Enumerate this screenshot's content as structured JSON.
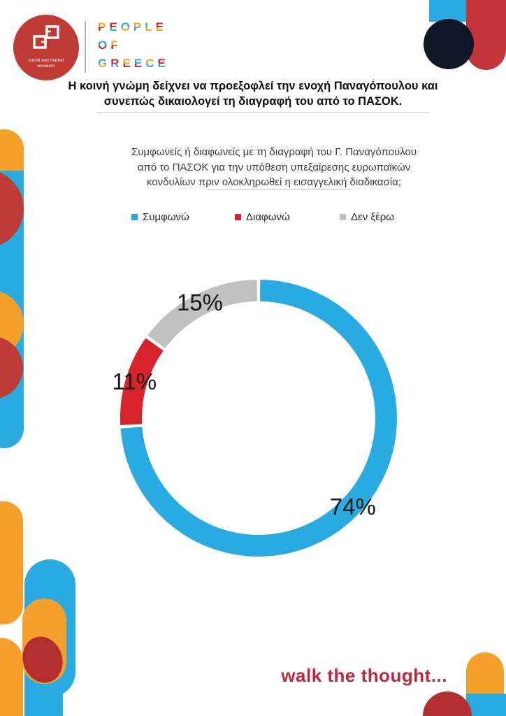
{
  "brand": {
    "logo_tagline_line1": "social and market",
    "logo_tagline_line2": "research",
    "wordmark": [
      [
        {
          "ch": "P",
          "top": "#F6A323",
          "bottom": "#D7232B"
        },
        {
          "ch": "E",
          "top": "#D7232B",
          "bottom": "#29ABE2"
        },
        {
          "ch": "O",
          "top": "#29ABE2",
          "bottom": "#F6A323"
        },
        {
          "ch": "P",
          "top": "#F6A323",
          "bottom": "#29ABE2"
        },
        {
          "ch": "L",
          "top": "#29ABE2",
          "bottom": "#F6A323"
        },
        {
          "ch": "E",
          "top": "#D7232B",
          "bottom": "#F6A323"
        }
      ],
      [
        {
          "ch": "O",
          "top": "#29ABE2",
          "bottom": "#D7232B"
        },
        {
          "ch": "F",
          "top": "#F6A323",
          "bottom": "#D7232B"
        }
      ],
      [
        {
          "ch": "G",
          "top": "#29ABE2",
          "bottom": "#F6A323"
        },
        {
          "ch": "R",
          "top": "#D7232B",
          "bottom": "#29ABE2"
        },
        {
          "ch": "E",
          "top": "#F6A323",
          "bottom": "#D7232B"
        },
        {
          "ch": "E",
          "top": "#29ABE2",
          "bottom": "#D7232B"
        },
        {
          "ch": "C",
          "top": "#F6A323",
          "bottom": "#29ABE2"
        },
        {
          "ch": "E",
          "top": "#D7232B",
          "bottom": "#29ABE2"
        }
      ]
    ]
  },
  "title": {
    "line1": "Η κοινή γνώμη δείχνει να προεξοφλεί την ενοχή Παναγόπουλου και",
    "line2": "συνεπώς δικαιολογεί τη διαγραφή του από το ΠΑΣΟΚ."
  },
  "question": {
    "line1": "Συμφωνείς ή διαφωνείς με τη διαγραφή του Γ. Παναγόπουλου",
    "line2": "από το ΠΑΣΟΚ για την υπόθεση υπεξαίρεσης ευρωπαϊκών",
    "line3": "κονδυλίων πριν ολοκληρωθεί η εισαγγελική διαδικασία;"
  },
  "legend": [
    {
      "label": "Συμφωνώ",
      "color": "#29ABE2"
    },
    {
      "label": "Διαφωνώ",
      "color": "#D7232B"
    },
    {
      "label": "Δεν ξέρω",
      "color": "#C1C1C1"
    }
  ],
  "chart_data": {
    "type": "pie",
    "subtype": "donut",
    "categories": [
      "Συμφωνώ",
      "Διαφωνώ",
      "Δεν ξέρω"
    ],
    "values": [
      74,
      11,
      15
    ],
    "unit": "%",
    "labels": [
      "74%",
      "11%",
      "15%"
    ],
    "colors": [
      "#29ABE2",
      "#D7232B",
      "#C1C1C1"
    ],
    "start_angle_deg": 0,
    "direction": "clockwise",
    "legend_position": "top",
    "title": "Συμφωνείς ή διαφωνείς με τη διαγραφή του Γ. Παναγόπουλου από το ΠΑΣΟΚ για την υπόθεση υπεξαίρεσης ευρωπαϊκών κονδυλίων πριν ολοκληρωθεί η εισαγγελική διαδικασία;"
  },
  "footer": {
    "tagline": "walk the thought..."
  },
  "colors": {
    "blue": "#29ABE2",
    "chart_red": "#D7232B",
    "gray": "#C1C1C1",
    "orange": "#F6A02C",
    "brick_red": "#BE3B36",
    "dark_red": "#B32E2E",
    "navy": "#101726",
    "tagline_red": "#C1273B"
  }
}
